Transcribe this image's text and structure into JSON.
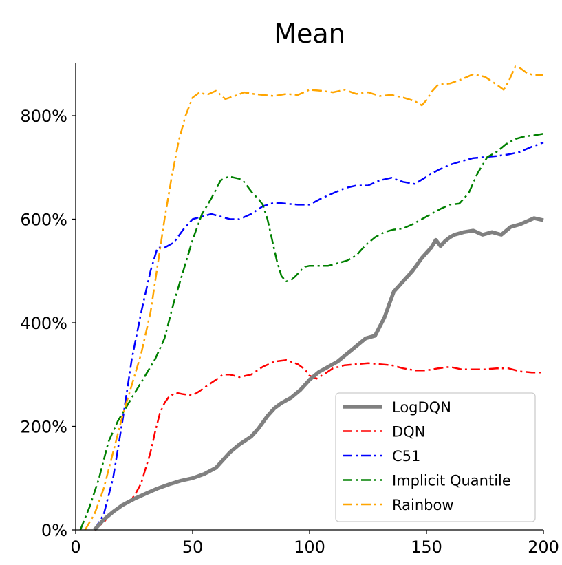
{
  "chart_data": {
    "type": "line",
    "title": "Mean",
    "xlabel": "",
    "ylabel": "",
    "xlim": [
      0,
      200
    ],
    "ylim": [
      0,
      900
    ],
    "x_ticks": [
      0,
      50,
      100,
      150,
      200
    ],
    "x_tick_labels": [
      "0",
      "50",
      "100",
      "150",
      "200"
    ],
    "y_ticks": [
      0,
      200,
      400,
      600,
      800
    ],
    "y_tick_labels": [
      "0%",
      "200%",
      "400%",
      "600%",
      "800%"
    ],
    "y_unit": "%",
    "grid": false,
    "legend_position": "lower-right",
    "series": [
      {
        "name": "LogDQN",
        "color": "#808080",
        "style": "solid",
        "x": [
          8,
          12,
          16,
          20,
          25,
          30,
          35,
          40,
          45,
          50,
          55,
          60,
          63,
          66,
          70,
          75,
          78,
          82,
          85,
          88,
          92,
          96,
          100,
          104,
          108,
          112,
          116,
          120,
          124,
          128,
          132,
          136,
          140,
          144,
          148,
          152,
          154,
          156,
          158,
          160,
          162,
          166,
          170,
          174,
          178,
          182,
          186,
          190,
          194,
          196,
          198,
          200
        ],
        "y": [
          0,
          20,
          35,
          48,
          60,
          70,
          80,
          88,
          95,
          100,
          108,
          120,
          135,
          150,
          165,
          180,
          195,
          220,
          235,
          245,
          255,
          270,
          290,
          305,
          315,
          325,
          340,
          355,
          370,
          375,
          410,
          460,
          480,
          500,
          525,
          545,
          560,
          548,
          558,
          565,
          570,
          575,
          578,
          570,
          575,
          570,
          585,
          590,
          598,
          602,
          600,
          598
        ]
      },
      {
        "name": "DQN",
        "color": "#ff0000",
        "style": "dashdot",
        "x": [
          8,
          12,
          16,
          20,
          25,
          28,
          30,
          32,
          34,
          36,
          38,
          40,
          43,
          46,
          50,
          53,
          56,
          60,
          63,
          66,
          70,
          75,
          80,
          85,
          90,
          95,
          98,
          100,
          103,
          106,
          110,
          115,
          120,
          125,
          130,
          135,
          140,
          145,
          150,
          155,
          160,
          165,
          170,
          175,
          180,
          185,
          190,
          195,
          200
        ],
        "y": [
          0,
          15,
          35,
          45,
          65,
          90,
          120,
          150,
          190,
          225,
          245,
          258,
          265,
          262,
          260,
          268,
          278,
          290,
          300,
          300,
          295,
          300,
          315,
          325,
          328,
          320,
          310,
          298,
          292,
          300,
          312,
          318,
          320,
          322,
          320,
          318,
          312,
          308,
          308,
          312,
          315,
          310,
          310,
          310,
          312,
          312,
          306,
          304,
          304
        ]
      },
      {
        "name": "C51",
        "color": "#0000ff",
        "style": "dashdot",
        "x": [
          8,
          12,
          16,
          20,
          24,
          28,
          32,
          35,
          38,
          42,
          46,
          50,
          54,
          58,
          62,
          66,
          70,
          75,
          80,
          85,
          90,
          95,
          100,
          105,
          110,
          115,
          120,
          125,
          130,
          135,
          140,
          145,
          150,
          155,
          160,
          165,
          170,
          175,
          180,
          185,
          190,
          195,
          200
        ],
        "y": [
          0,
          30,
          100,
          210,
          330,
          420,
          500,
          545,
          545,
          555,
          580,
          600,
          605,
          610,
          605,
          600,
          600,
          610,
          625,
          632,
          630,
          628,
          628,
          640,
          650,
          660,
          665,
          665,
          675,
          680,
          672,
          668,
          682,
          695,
          705,
          712,
          718,
          720,
          722,
          725,
          730,
          740,
          748
        ]
      },
      {
        "name": "Implicit Quantile",
        "color": "#008000",
        "style": "dashdot",
        "x": [
          2,
          6,
          10,
          14,
          18,
          22,
          26,
          30,
          34,
          38,
          42,
          46,
          50,
          54,
          58,
          62,
          64,
          66,
          68,
          70,
          72,
          74,
          76,
          78,
          80,
          82,
          84,
          86,
          88,
          90,
          92,
          94,
          96,
          98,
          100,
          104,
          108,
          112,
          116,
          120,
          124,
          128,
          132,
          136,
          140,
          144,
          148,
          152,
          156,
          160,
          164,
          168,
          172,
          176,
          180,
          184,
          188,
          192,
          196,
          200
        ],
        "y": [
          0,
          45,
          100,
          170,
          210,
          240,
          270,
          300,
          330,
          370,
          440,
          500,
          560,
          610,
          640,
          675,
          680,
          682,
          680,
          678,
          672,
          660,
          648,
          640,
          628,
          600,
          560,
          520,
          490,
          480,
          482,
          490,
          500,
          508,
          510,
          510,
          510,
          515,
          520,
          530,
          550,
          565,
          575,
          580,
          582,
          590,
          600,
          610,
          620,
          628,
          630,
          650,
          690,
          720,
          730,
          745,
          755,
          760,
          762,
          765
        ]
      },
      {
        "name": "Rainbow",
        "color": "#ffa500",
        "style": "dashdot",
        "x": [
          4,
          8,
          12,
          16,
          20,
          24,
          28,
          32,
          35,
          38,
          41,
          44,
          47,
          50,
          53,
          56,
          60,
          64,
          68,
          72,
          76,
          80,
          85,
          90,
          95,
          100,
          105,
          110,
          115,
          120,
          125,
          130,
          135,
          140,
          145,
          148,
          150,
          152,
          155,
          160,
          165,
          170,
          175,
          180,
          183,
          185,
          188,
          190,
          193,
          196,
          200
        ],
        "y": [
          0,
          30,
          80,
          150,
          220,
          280,
          340,
          420,
          510,
          600,
          680,
          750,
          800,
          835,
          845,
          840,
          848,
          832,
          838,
          845,
          842,
          840,
          838,
          842,
          840,
          850,
          848,
          845,
          850,
          842,
          845,
          838,
          840,
          835,
          828,
          820,
          830,
          845,
          860,
          862,
          870,
          880,
          875,
          860,
          850,
          865,
          895,
          892,
          882,
          878,
          878
        ]
      }
    ]
  }
}
